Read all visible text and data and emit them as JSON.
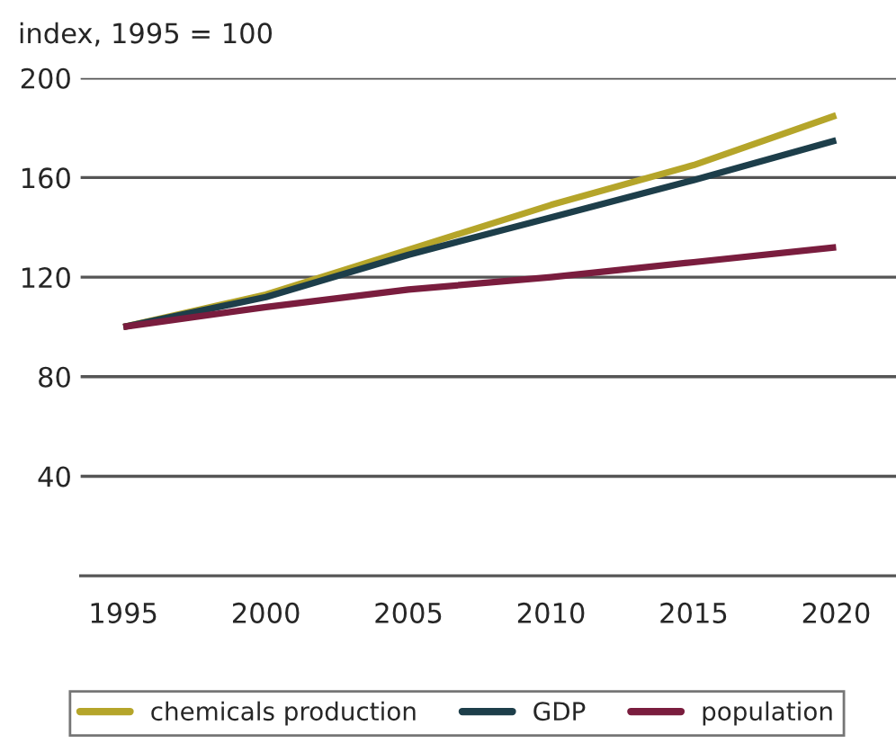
{
  "chart_data": {
    "type": "line",
    "ylabel": "index, 1995 = 100",
    "x": [
      1995,
      2000,
      2005,
      2010,
      2015,
      2020
    ],
    "series": [
      {
        "name": "chemicals production",
        "color": "#b5a52a",
        "values": [
          100,
          113,
          131,
          149,
          165,
          185
        ]
      },
      {
        "name": "GDP",
        "color": "#1d3e4a",
        "values": [
          100,
          112,
          129,
          144,
          159,
          175
        ]
      },
      {
        "name": "population",
        "color": "#7a1d3e",
        "values": [
          100,
          108,
          115,
          120,
          126,
          132
        ]
      }
    ],
    "xlim": [
      1993.5,
      2022.1
    ],
    "xticks": [
      1995,
      2000,
      2005,
      2010,
      2015,
      2020
    ],
    "ylim": [
      0,
      200
    ],
    "yticks": [
      40,
      80,
      120,
      160,
      200
    ],
    "grid": "y",
    "legend": "bottom",
    "marker": "none",
    "line_style": "solid"
  }
}
